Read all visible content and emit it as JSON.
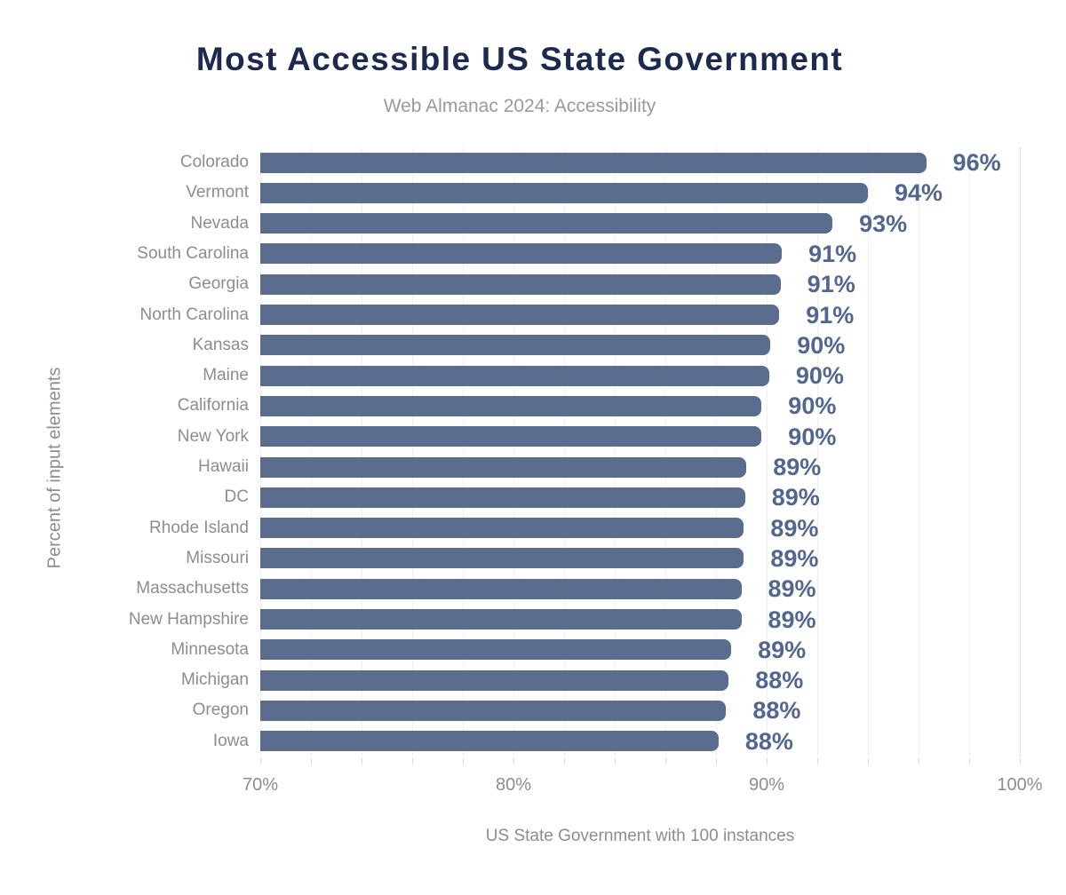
{
  "header": {
    "title": "Most Accessible US State Government",
    "subtitle": "Web Almanac 2024: Accessibility"
  },
  "colors": {
    "background": "#ffffff",
    "bar": "#5b6d8f",
    "value_label": "#52678e",
    "title": "#1b2a4e",
    "subtitle": "#999a9e",
    "axis_text": "#8a8d91",
    "gridline": "#f0f0f4",
    "gridline_dotted": "#c9cbd4",
    "tick": "#d8d8dc"
  },
  "chart_data": {
    "type": "bar",
    "orientation": "horizontal",
    "title": "Most Accessible US State Government",
    "subtitle": "Web Almanac 2024: Accessibility",
    "xlabel": "US State Government with 100 instances",
    "ylabel": "Percent of input elements",
    "xlim": [
      70,
      100
    ],
    "x_ticks": [
      "70%",
      "80%",
      "90%",
      "100%"
    ],
    "x_tick_values": [
      70,
      80,
      90,
      100
    ],
    "gridline_step": 2,
    "grid": true,
    "legend": false,
    "categories": [
      "Colorado",
      "Vermont",
      "Nevada",
      "South Carolina",
      "Georgia",
      "North Carolina",
      "Kansas",
      "Maine",
      "California",
      "New York",
      "Hawaii",
      "DC",
      "Rhode Island",
      "Missouri",
      "Massachusetts",
      "New Hampshire",
      "Minnesota",
      "Michigan",
      "Oregon",
      "Iowa"
    ],
    "values": [
      96.3,
      94.0,
      92.6,
      90.6,
      90.55,
      90.5,
      90.15,
      90.1,
      89.8,
      89.8,
      89.2,
      89.15,
      89.1,
      89.1,
      89.0,
      89.0,
      88.6,
      88.5,
      88.4,
      88.1
    ],
    "labels": [
      "96%",
      "94%",
      "93%",
      "91%",
      "91%",
      "91%",
      "90%",
      "90%",
      "90%",
      "90%",
      "89%",
      "89%",
      "89%",
      "89%",
      "89%",
      "89%",
      "89%",
      "88%",
      "88%",
      "88%"
    ]
  }
}
